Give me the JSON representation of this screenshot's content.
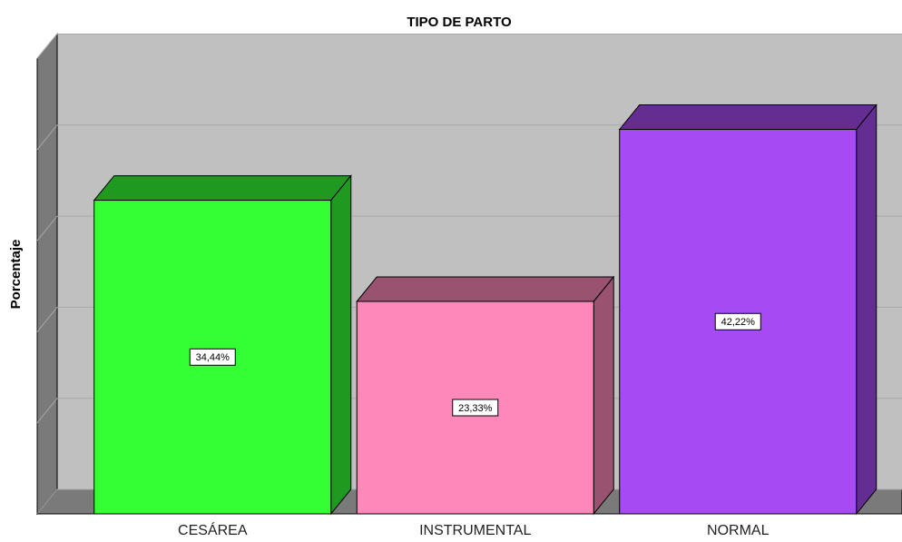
{
  "chart_data": {
    "type": "bar3d",
    "title": "TIPO DE PARTO",
    "y_label": "Porcentaje",
    "categories": [
      "CESÁREA",
      "INSTRUMENTAL",
      "NORMAL"
    ],
    "values": [
      34.44,
      23.33,
      42.22
    ],
    "value_labels": [
      "34,44%",
      "23,33%",
      "42,22%"
    ],
    "colors": [
      "#33ff33",
      "#ff88bb",
      "#a64bf4"
    ],
    "ylim": [
      0,
      50
    ],
    "yticks": [
      0,
      10,
      20,
      30,
      40,
      50
    ],
    "grid": true
  }
}
